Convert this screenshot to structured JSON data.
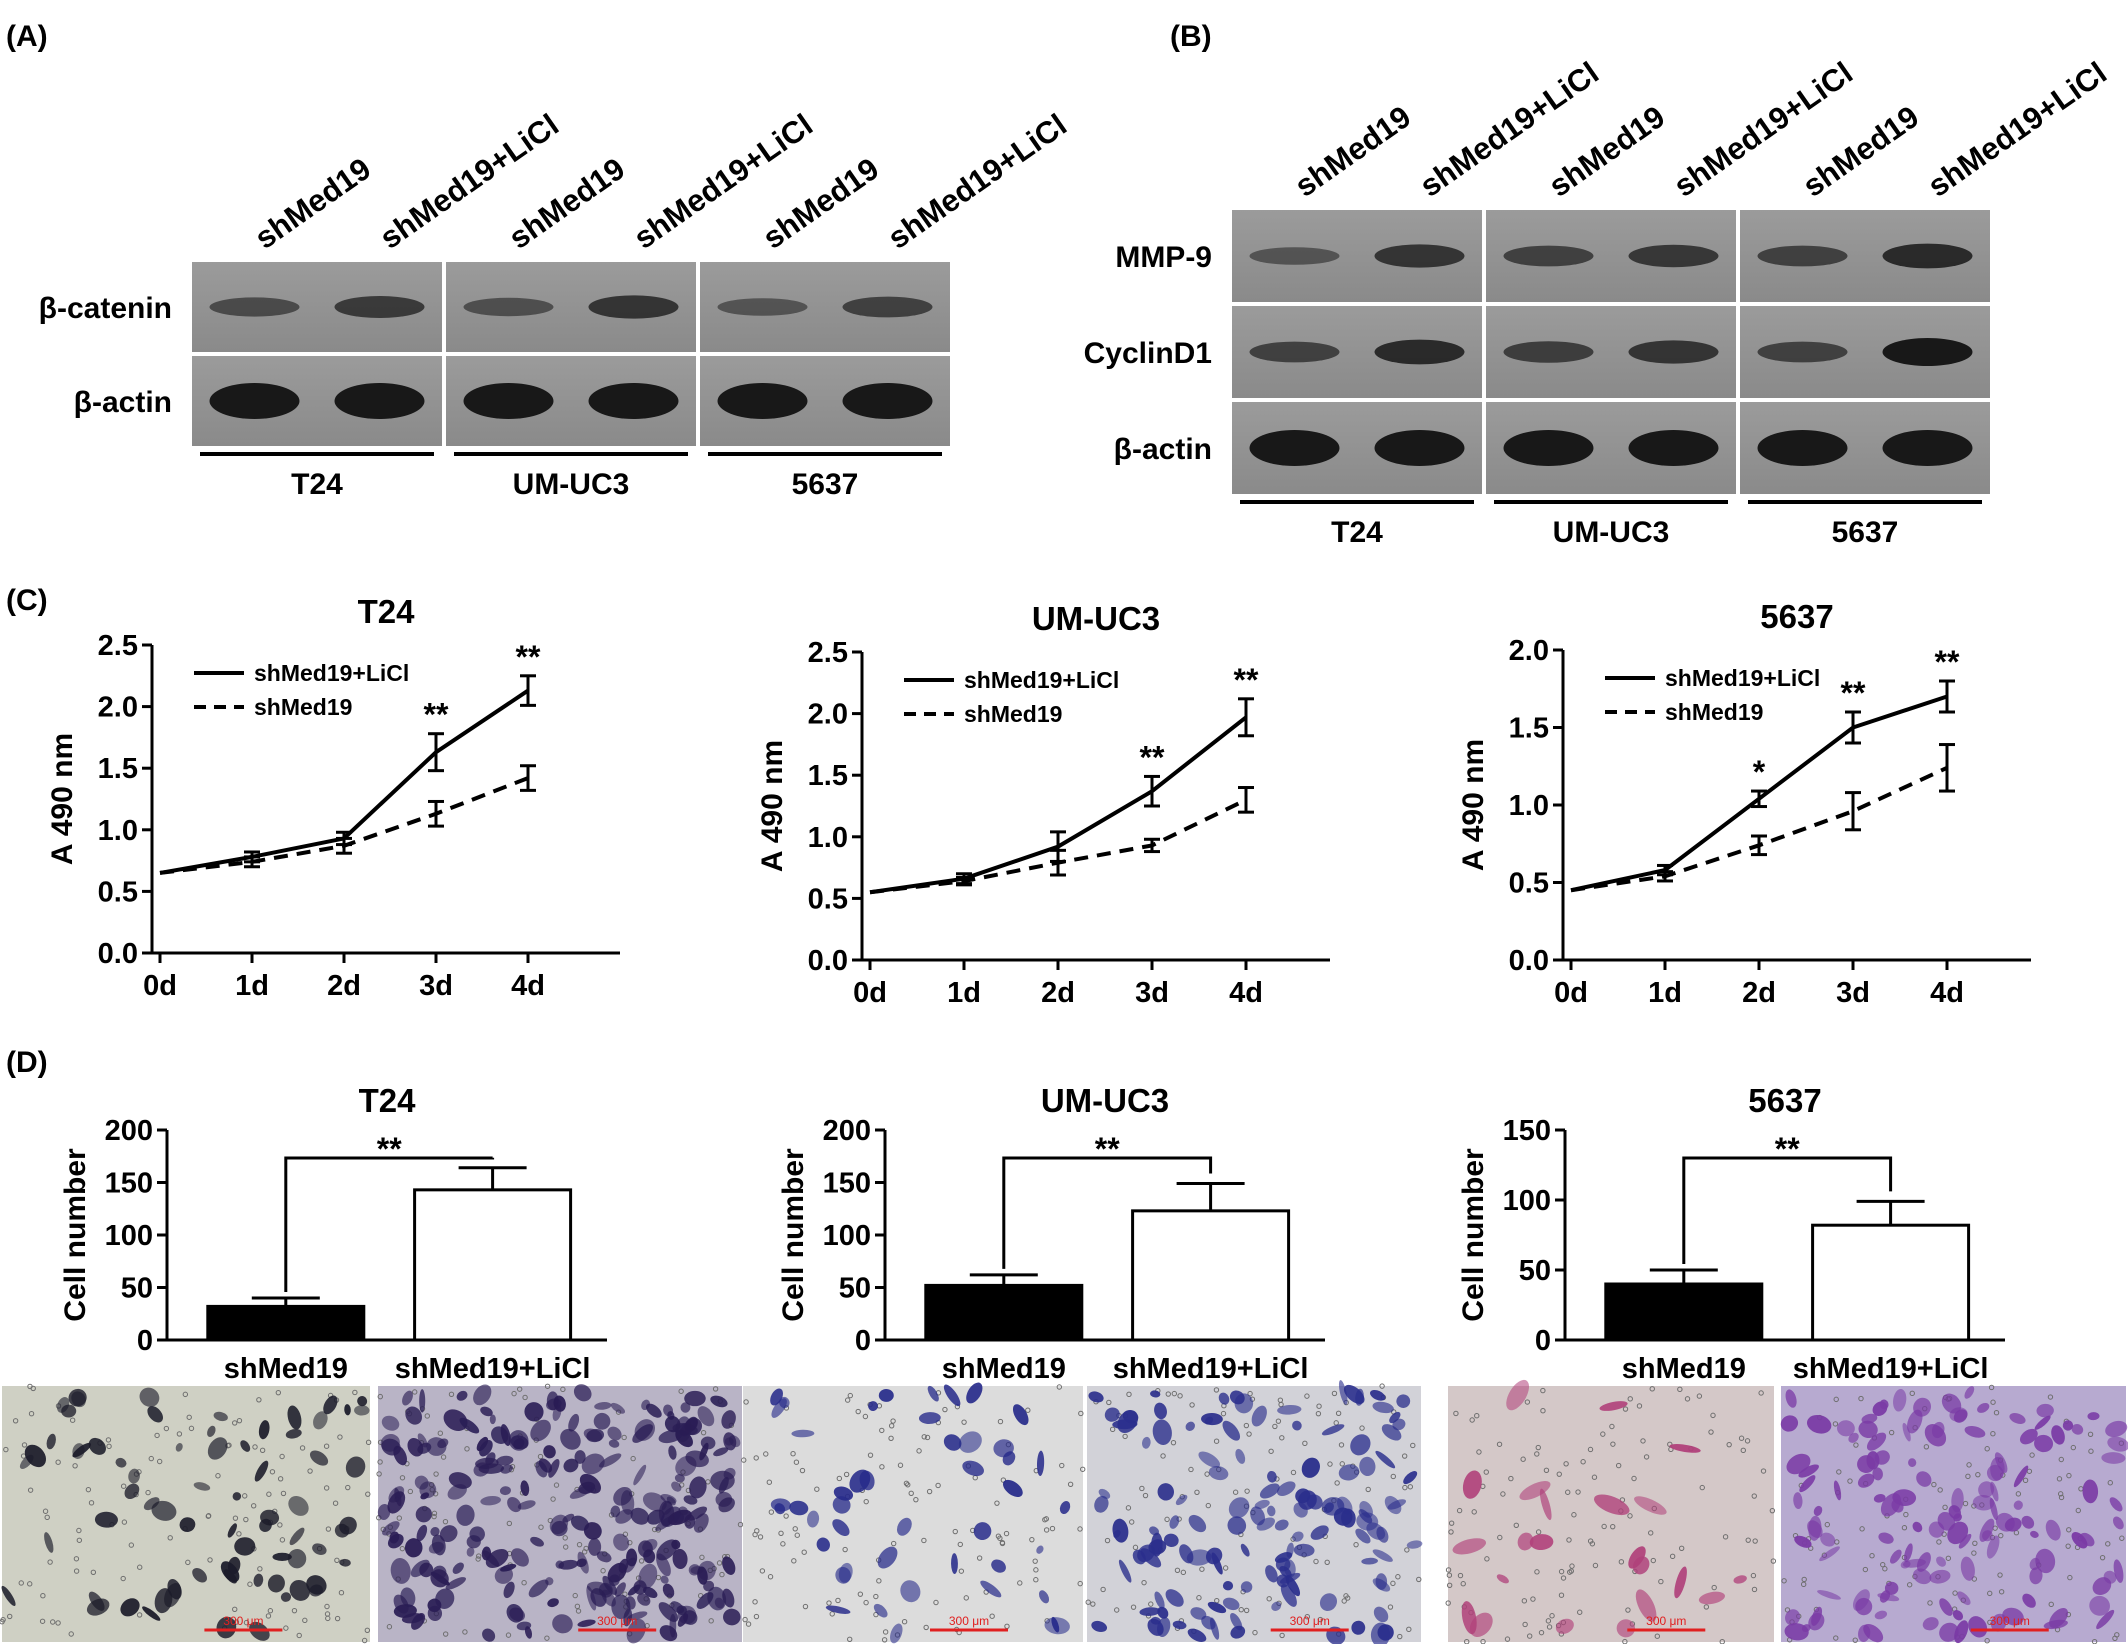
{
  "panel_labels": {
    "a": "(A)",
    "b": "(B)",
    "c": "(C)",
    "d": "(D)"
  },
  "blot_a": {
    "lanes": [
      "shMed19",
      "shMed19+LiCl",
      "shMed19",
      "shMed19+LiCl",
      "shMed19",
      "shMed19+LiCl"
    ],
    "rows": [
      "β-catenin",
      "β-actin"
    ],
    "groups": [
      "T24",
      "UM-UC3",
      "5637"
    ],
    "band_intensity": [
      [
        0.45,
        0.62,
        0.4,
        0.7,
        0.35,
        0.55
      ],
      [
        1,
        1,
        1,
        1,
        1,
        1
      ]
    ]
  },
  "blot_b": {
    "lanes": [
      "shMed19",
      "shMed19+LiCl",
      "shMed19",
      "shMed19+LiCl",
      "shMed19",
      "shMed19+LiCl"
    ],
    "rows": [
      "MMP-9",
      "CyclinD1",
      "β-actin"
    ],
    "groups": [
      "T24",
      "UM-UC3",
      "5637"
    ],
    "band_intensity": [
      [
        0.35,
        0.7,
        0.55,
        0.65,
        0.55,
        0.8
      ],
      [
        0.55,
        0.8,
        0.6,
        0.7,
        0.55,
        1
      ],
      [
        1,
        1,
        1,
        1,
        1,
        1
      ]
    ]
  },
  "chart_data": [
    {
      "type": "line",
      "panel": "C",
      "title": "T24",
      "ylabel": "A 490 nm",
      "categories": [
        "0d",
        "1d",
        "2d",
        "3d",
        "4d"
      ],
      "ylim": [
        0,
        2.5
      ],
      "yticks": [
        "0.0",
        "0.5",
        "1.0",
        "1.5",
        "2.0",
        "2.5"
      ],
      "series": [
        {
          "name": "shMed19+LiCl",
          "style": "solid",
          "values": [
            0.65,
            0.78,
            0.93,
            1.63,
            2.13
          ],
          "errors": [
            0.02,
            0.04,
            0.05,
            0.15,
            0.12
          ]
        },
        {
          "name": "shMed19",
          "style": "dashed",
          "values": [
            0.65,
            0.74,
            0.87,
            1.13,
            1.42
          ],
          "errors": [
            0.02,
            0.04,
            0.06,
            0.1,
            0.1
          ]
        }
      ],
      "annotations": [
        "",
        "",
        "",
        "**",
        "**"
      ]
    },
    {
      "type": "line",
      "panel": "C",
      "title": "UM-UC3",
      "ylabel": "A 490 nm",
      "categories": [
        "0d",
        "1d",
        "2d",
        "3d",
        "4d"
      ],
      "ylim": [
        0,
        2.5
      ],
      "yticks": [
        "0.0",
        "0.5",
        "1.0",
        "1.5",
        "2.0",
        "2.5"
      ],
      "series": [
        {
          "name": "shMed19+LiCl",
          "style": "solid",
          "values": [
            0.55,
            0.66,
            0.92,
            1.37,
            1.97
          ],
          "errors": [
            0.02,
            0.04,
            0.12,
            0.12,
            0.15
          ]
        },
        {
          "name": "shMed19",
          "style": "dashed",
          "values": [
            0.55,
            0.64,
            0.79,
            0.93,
            1.3
          ],
          "errors": [
            0.02,
            0.03,
            0.1,
            0.05,
            0.1
          ]
        }
      ],
      "annotations": [
        "",
        "",
        "",
        "**",
        "**"
      ]
    },
    {
      "type": "line",
      "panel": "C",
      "title": "5637",
      "ylabel": "A 490 nm",
      "categories": [
        "0d",
        "1d",
        "2d",
        "3d",
        "4d"
      ],
      "ylim": [
        0,
        2.0
      ],
      "yticks": [
        "0.0",
        "0.5",
        "1.0",
        "1.5",
        "2.0"
      ],
      "series": [
        {
          "name": "shMed19+LiCl",
          "style": "solid",
          "values": [
            0.45,
            0.58,
            1.04,
            1.5,
            1.7
          ],
          "errors": [
            0.02,
            0.03,
            0.05,
            0.1,
            0.1
          ]
        },
        {
          "name": "shMed19",
          "style": "dashed",
          "values": [
            0.45,
            0.54,
            0.74,
            0.96,
            1.24
          ],
          "errors": [
            0.02,
            0.03,
            0.06,
            0.12,
            0.15
          ]
        }
      ],
      "annotations": [
        "",
        "",
        "*",
        "**",
        "**"
      ]
    },
    {
      "type": "bar",
      "panel": "D",
      "title": "T24",
      "ylabel": "Cell number",
      "categories": [
        "shMed19",
        "shMed19+LiCl"
      ],
      "ylim": [
        0,
        200
      ],
      "yticks": [
        "0",
        "50",
        "100",
        "150",
        "200"
      ],
      "values": [
        32,
        143
      ],
      "errors": [
        8,
        21
      ],
      "fills": [
        "#000000",
        "#ffffff"
      ],
      "significance": "**"
    },
    {
      "type": "bar",
      "panel": "D",
      "title": "UM-UC3",
      "ylabel": "Cell number",
      "categories": [
        "shMed19",
        "shMed19+LiCl"
      ],
      "ylim": [
        0,
        200
      ],
      "yticks": [
        "0",
        "50",
        "100",
        "150",
        "200"
      ],
      "values": [
        52,
        123
      ],
      "errors": [
        10,
        26
      ],
      "fills": [
        "#000000",
        "#ffffff"
      ],
      "significance": "**"
    },
    {
      "type": "bar",
      "panel": "D",
      "title": "5637",
      "ylabel": "Cell number",
      "categories": [
        "shMed19",
        "shMed19+LiCl"
      ],
      "ylim": [
        0,
        150
      ],
      "yticks": [
        "0",
        "50",
        "100",
        "150"
      ],
      "values": [
        40,
        82
      ],
      "errors": [
        10,
        17
      ],
      "fills": [
        "#000000",
        "#ffffff"
      ],
      "significance": "**"
    }
  ],
  "micrographs": {
    "scale_bar": "300 μm",
    "scale_color": "#e02020",
    "images": [
      {
        "cell_line": "T24",
        "condition": "shMed19",
        "bg": "#cfd0c4",
        "cell_color": "#1c1c2a",
        "density": 70
      },
      {
        "cell_line": "T24",
        "condition": "shMed19+LiCl",
        "bg": "#b9b4c6",
        "cell_color": "#2a1d55",
        "density": 240
      },
      {
        "cell_line": "UM-UC3",
        "condition": "shMed19",
        "bg": "#dcdcdc",
        "cell_color": "#262a8a",
        "density": 45
      },
      {
        "cell_line": "UM-UC3",
        "condition": "shMed19+LiCl",
        "bg": "#d2d2d8",
        "cell_color": "#2a2e8c",
        "density": 130
      },
      {
        "cell_line": "5637",
        "condition": "shMed19",
        "bg": "#d4c8c8",
        "cell_color": "#b0407a",
        "density": 22
      },
      {
        "cell_line": "5637",
        "condition": "shMed19+LiCl",
        "bg": "#b7aad0",
        "cell_color": "#7a3aa5",
        "density": 130
      }
    ]
  }
}
